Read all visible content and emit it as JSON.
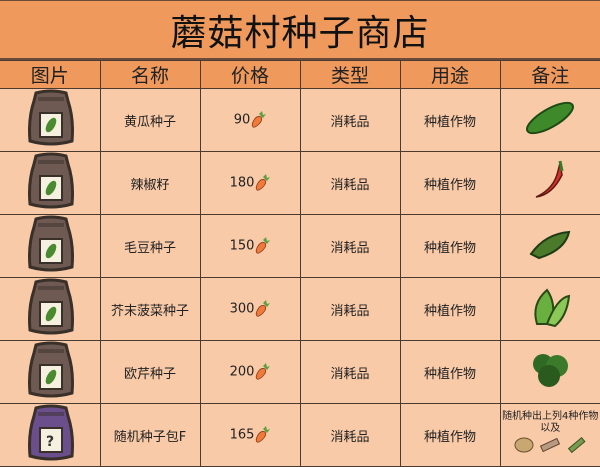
{
  "title": "蘑菇村种子商店",
  "headers": [
    "图片",
    "名称",
    "价格",
    "类型",
    "用途",
    "备注"
  ],
  "colors": {
    "header_bg": "#ef9a5c",
    "row_bg": "#f9caa8",
    "bag": "#6e5a52",
    "bag_mystery": "#6a4f8c"
  },
  "currency_icon": "carrot-icon",
  "rows": [
    {
      "name": "黄瓜种子",
      "price": "90",
      "type": "消耗品",
      "use": "种植作物",
      "note_icon": "cucumber-icon",
      "bag": "normal"
    },
    {
      "name": "辣椒籽",
      "price": "180",
      "type": "消耗品",
      "use": "种植作物",
      "note_icon": "chili-pepper-icon",
      "bag": "normal"
    },
    {
      "name": "毛豆种子",
      "price": "150",
      "type": "消耗品",
      "use": "种植作物",
      "note_icon": "edamame-icon",
      "bag": "normal"
    },
    {
      "name": "芥末菠菜种子",
      "price": "300",
      "type": "消耗品",
      "use": "种植作物",
      "note_icon": "mustard-spinach-icon",
      "bag": "normal"
    },
    {
      "name": "欧芹种子",
      "price": "200",
      "type": "消耗品",
      "use": "种植作物",
      "note_icon": "parsley-icon",
      "bag": "normal"
    },
    {
      "name": "随机种子包F",
      "price": "165",
      "type": "消耗品",
      "use": "种植作物",
      "note_text": "随机种出上列4种作物以及",
      "note_icons": [
        "peanut-icon",
        "wood-icon",
        "herb-icon"
      ],
      "bag": "mystery"
    }
  ]
}
